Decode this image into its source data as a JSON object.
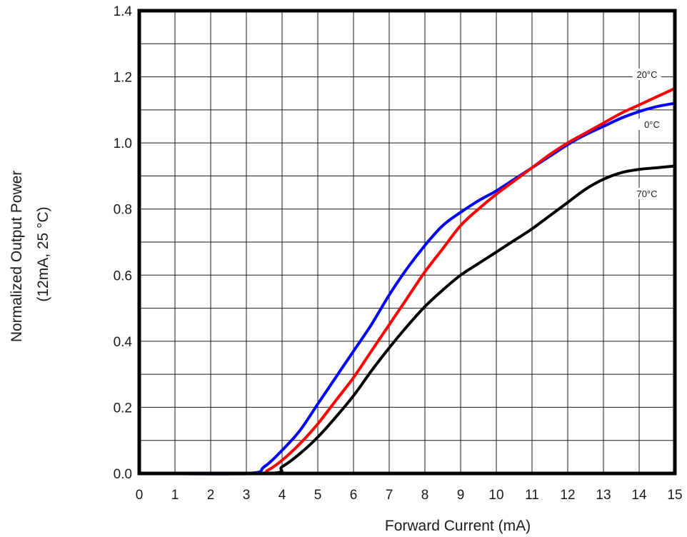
{
  "chart_data": {
    "type": "line",
    "title": "",
    "xlabel": "Forward Current (mA)",
    "ylabel_lines": [
      "Normalized Output Power",
      "(12mA, 25 °C)"
    ],
    "xlim": [
      0,
      15
    ],
    "ylim": [
      0,
      1.4
    ],
    "x_ticks": [
      "0",
      "1",
      "2",
      "3",
      "4",
      "5",
      "6",
      "7",
      "8",
      "9",
      "10",
      "11",
      "12",
      "13",
      "14",
      "15"
    ],
    "y_ticks": [
      "0.0",
      "0.2",
      "0.4",
      "0.6",
      "0.8",
      "1.0",
      "1.2",
      "1.4"
    ],
    "x_minor_step": 1,
    "y_minor_step": 0.1,
    "grid": true,
    "series": [
      {
        "name": "0°C",
        "color": "#0000ff",
        "x": [
          0,
          3.0,
          3.5,
          4.0,
          4.5,
          5.0,
          5.5,
          6.0,
          6.5,
          7.0,
          7.5,
          8.0,
          8.5,
          9.0,
          9.5,
          10.0,
          10.5,
          11.0,
          11.5,
          12.0,
          12.5,
          13.0,
          13.5,
          14.0,
          14.5,
          15.0
        ],
        "y": [
          0,
          0,
          0.02,
          0.07,
          0.13,
          0.21,
          0.29,
          0.37,
          0.45,
          0.54,
          0.62,
          0.69,
          0.75,
          0.79,
          0.825,
          0.855,
          0.89,
          0.925,
          0.96,
          0.995,
          1.025,
          1.05,
          1.075,
          1.095,
          1.11,
          1.12
        ]
      },
      {
        "name": "20°C",
        "color": "#ff0000",
        "x": [
          0,
          3.2,
          3.6,
          4.0,
          4.5,
          5.0,
          5.5,
          6.0,
          6.5,
          7.0,
          7.5,
          8.0,
          8.5,
          9.0,
          9.5,
          10.0,
          10.5,
          11.0,
          11.5,
          12.0,
          12.5,
          13.0,
          13.5,
          14.0,
          14.5,
          15.0
        ],
        "y": [
          0,
          0,
          0.01,
          0.04,
          0.09,
          0.15,
          0.22,
          0.29,
          0.37,
          0.45,
          0.53,
          0.61,
          0.68,
          0.75,
          0.8,
          0.845,
          0.885,
          0.925,
          0.965,
          1.0,
          1.03,
          1.06,
          1.09,
          1.115,
          1.14,
          1.165
        ]
      },
      {
        "name": "70°C",
        "color": "#000000",
        "x": [
          0,
          3.6,
          4.0,
          4.5,
          5.0,
          5.5,
          6.0,
          6.5,
          7.0,
          7.5,
          8.0,
          8.5,
          9.0,
          9.5,
          10.0,
          10.5,
          11.0,
          11.5,
          12.0,
          12.5,
          13.0,
          13.5,
          14.0,
          14.5,
          15.0
        ],
        "y": [
          0,
          0,
          0.02,
          0.06,
          0.11,
          0.17,
          0.235,
          0.31,
          0.38,
          0.445,
          0.505,
          0.555,
          0.6,
          0.635,
          0.67,
          0.705,
          0.74,
          0.78,
          0.82,
          0.86,
          0.89,
          0.91,
          0.92,
          0.925,
          0.93
        ]
      }
    ],
    "annotations": [
      {
        "text": "20°C",
        "series": "20°C"
      },
      {
        "text": "0°C",
        "series": "0°C"
      },
      {
        "text": "70°C",
        "series": "70°C"
      }
    ]
  }
}
